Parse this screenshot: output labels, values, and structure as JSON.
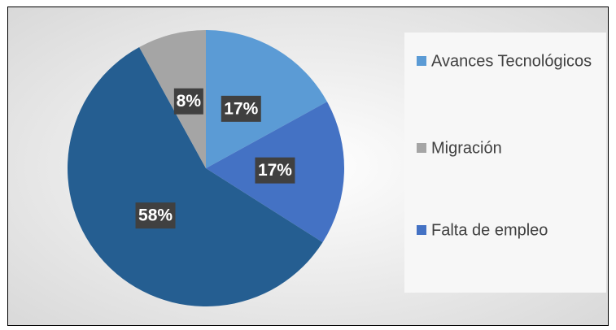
{
  "chart_data": {
    "type": "pie",
    "categories": [
      "Avances Tecnológicos",
      "Falta de empleo",
      null,
      "Migración"
    ],
    "values": [
      17,
      17,
      58,
      8
    ],
    "value_labels": [
      "17%",
      "17%",
      "58%",
      "8%"
    ],
    "colors": [
      "#5b9bd5",
      "#4472c4",
      "#255e91",
      "#a5a5a5"
    ],
    "legend": [
      {
        "name": "Avances Tecnológicos",
        "color": "#5b9bd5"
      },
      {
        "name": "Migración",
        "color": "#a5a5a5"
      },
      {
        "name": "Falta de empleo",
        "color": "#4472c4"
      }
    ],
    "legend_position": "right"
  }
}
